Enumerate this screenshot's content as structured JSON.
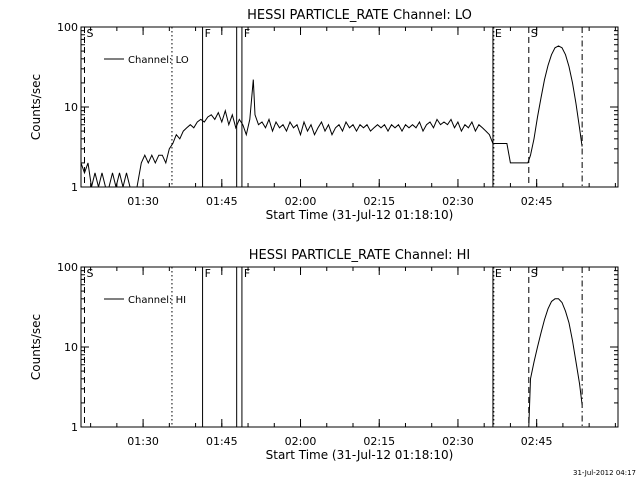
{
  "footer_date": "31-Jul-2012 04:17",
  "colors": {
    "line": "#000000",
    "background": "#ffffff"
  },
  "chart_data": [
    {
      "type": "line",
      "title": "HESSI PARTICLE_RATE Channel: LO",
      "xlabel": "Start Time (31-Jul-12 01:18:10)",
      "ylabel": "Counts/sec",
      "yscale": "log",
      "ylim": [
        1,
        100
      ],
      "xlim": [
        "01:18:10",
        "03:00:30"
      ],
      "x_ticks": [
        "01:30",
        "01:45",
        "02:00",
        "02:15",
        "02:30",
        "02:45"
      ],
      "y_ticks": [
        "1",
        "10",
        "100"
      ],
      "legend": {
        "entries": [
          "Channel: LO"
        ],
        "position": "top-left"
      },
      "event_markers": [
        {
          "label": "S",
          "time": "01:18:50",
          "style": "dashed"
        },
        {
          "label": "",
          "time": "01:35:30",
          "style": "dotted"
        },
        {
          "label": "F",
          "time": "01:41:20",
          "style": "solid"
        },
        {
          "label": "",
          "time": "01:47:50",
          "style": "solid"
        },
        {
          "label": "F",
          "time": "01:48:50",
          "style": "solid"
        },
        {
          "label": "E",
          "time": "02:36:40",
          "style": "solid"
        },
        {
          "label": "",
          "time": "02:36:50",
          "style": "dotted"
        },
        {
          "label": "S",
          "time": "02:43:30",
          "style": "dashed"
        },
        {
          "label": "",
          "time": "02:53:40",
          "style": "dashdot"
        }
      ],
      "series": [
        {
          "name": "Channel: LO",
          "points": [
            [
              "01:18:10",
              2.0
            ],
            [
              "01:18:50",
              1.5
            ],
            [
              "01:19:30",
              2.0
            ],
            [
              "01:20:10",
              1.0
            ],
            [
              "01:20:50",
              1.5
            ],
            [
              "01:21:30",
              1.0
            ],
            [
              "01:22:10",
              1.5
            ],
            [
              "01:22:50",
              1.0
            ],
            [
              "01:23:30",
              1.0
            ],
            [
              "01:24:10",
              1.5
            ],
            [
              "01:24:50",
              1.0
            ],
            [
              "01:25:30",
              1.5
            ],
            [
              "01:26:10",
              1.0
            ],
            [
              "01:26:50",
              1.5
            ],
            [
              "01:27:30",
              1.0
            ],
            [
              "01:28:10",
              1.0
            ],
            [
              "01:28:50",
              1.0
            ],
            [
              "01:29:40",
              2.0
            ],
            [
              "01:30:20",
              2.5
            ],
            [
              "01:31:00",
              2.0
            ],
            [
              "01:31:40",
              2.5
            ],
            [
              "01:32:20",
              2.0
            ],
            [
              "01:33:00",
              2.5
            ],
            [
              "01:33:40",
              2.5
            ],
            [
              "01:34:20",
              2.0
            ],
            [
              "01:35:00",
              3.0
            ],
            [
              "01:35:40",
              3.5
            ],
            [
              "01:36:20",
              4.5
            ],
            [
              "01:37:00",
              4.0
            ],
            [
              "01:37:40",
              5.0
            ],
            [
              "01:38:20",
              5.5
            ],
            [
              "01:39:00",
              6.0
            ],
            [
              "01:39:40",
              5.5
            ],
            [
              "01:40:20",
              6.5
            ],
            [
              "01:41:00",
              7.0
            ],
            [
              "01:41:40",
              6.5
            ],
            [
              "01:42:20",
              7.5
            ],
            [
              "01:43:00",
              8.0
            ],
            [
              "01:43:40",
              7.0
            ],
            [
              "01:44:20",
              8.5
            ],
            [
              "01:45:00",
              6.5
            ],
            [
              "01:45:40",
              9.0
            ],
            [
              "01:46:20",
              6.0
            ],
            [
              "01:47:00",
              8.0
            ],
            [
              "01:47:40",
              5.5
            ],
            [
              "01:48:20",
              7.0
            ],
            [
              "01:49:00",
              6.0
            ],
            [
              "01:49:40",
              4.5
            ],
            [
              "01:50:20",
              7.0
            ],
            [
              "01:51:00",
              22.0
            ],
            [
              "01:51:20",
              8.0
            ],
            [
              "01:52:00",
              6.0
            ],
            [
              "01:52:40",
              6.5
            ],
            [
              "01:53:20",
              5.5
            ],
            [
              "01:54:00",
              7.0
            ],
            [
              "01:54:40",
              5.0
            ],
            [
              "01:55:20",
              6.5
            ],
            [
              "01:56:00",
              5.5
            ],
            [
              "01:56:40",
              6.0
            ],
            [
              "01:57:20",
              5.0
            ],
            [
              "01:58:00",
              6.5
            ],
            [
              "01:58:40",
              5.5
            ],
            [
              "01:59:20",
              6.0
            ],
            [
              "02:00:00",
              4.5
            ],
            [
              "02:00:40",
              6.5
            ],
            [
              "02:01:20",
              5.0
            ],
            [
              "02:02:00",
              6.0
            ],
            [
              "02:02:40",
              4.5
            ],
            [
              "02:03:20",
              5.5
            ],
            [
              "02:04:00",
              6.5
            ],
            [
              "02:04:40",
              5.0
            ],
            [
              "02:05:20",
              6.0
            ],
            [
              "02:06:00",
              4.5
            ],
            [
              "02:06:40",
              5.5
            ],
            [
              "02:07:20",
              6.0
            ],
            [
              "02:08:00",
              5.0
            ],
            [
              "02:08:40",
              6.5
            ],
            [
              "02:09:20",
              5.5
            ],
            [
              "02:10:00",
              6.0
            ],
            [
              "02:10:40",
              5.0
            ],
            [
              "02:11:20",
              6.0
            ],
            [
              "02:12:00",
              5.5
            ],
            [
              "02:12:40",
              6.0
            ],
            [
              "02:13:20",
              5.0
            ],
            [
              "02:14:00",
              5.5
            ],
            [
              "02:14:40",
              6.0
            ],
            [
              "02:15:20",
              5.5
            ],
            [
              "02:16:00",
              6.0
            ],
            [
              "02:16:40",
              5.0
            ],
            [
              "02:17:20",
              6.0
            ],
            [
              "02:18:00",
              5.5
            ],
            [
              "02:18:40",
              6.0
            ],
            [
              "02:19:20",
              5.0
            ],
            [
              "02:20:00",
              6.0
            ],
            [
              "02:20:40",
              5.5
            ],
            [
              "02:21:20",
              6.0
            ],
            [
              "02:22:00",
              5.5
            ],
            [
              "02:22:40",
              6.5
            ],
            [
              "02:23:20",
              5.0
            ],
            [
              "02:24:00",
              6.0
            ],
            [
              "02:24:40",
              6.5
            ],
            [
              "02:25:20",
              5.5
            ],
            [
              "02:26:00",
              7.0
            ],
            [
              "02:26:40",
              6.0
            ],
            [
              "02:27:20",
              6.5
            ],
            [
              "02:28:00",
              6.0
            ],
            [
              "02:28:40",
              7.0
            ],
            [
              "02:29:20",
              5.5
            ],
            [
              "02:30:00",
              6.5
            ],
            [
              "02:30:40",
              5.0
            ],
            [
              "02:31:20",
              6.0
            ],
            [
              "02:32:00",
              5.5
            ],
            [
              "02:32:40",
              6.5
            ],
            [
              "02:33:20",
              5.0
            ],
            [
              "02:34:00",
              6.0
            ],
            [
              "02:34:40",
              5.5
            ],
            [
              "02:35:20",
              5.0
            ],
            [
              "02:36:00",
              4.5
            ],
            [
              "02:36:40",
              3.5
            ],
            [
              "02:37:20",
              3.5
            ],
            [
              "02:38:00",
              3.5
            ],
            [
              "02:38:40",
              3.5
            ],
            [
              "02:39:20",
              3.5
            ],
            [
              "02:40:00",
              2.0
            ],
            [
              "02:40:40",
              2.0
            ],
            [
              "02:41:20",
              2.0
            ],
            [
              "02:42:00",
              2.0
            ],
            [
              "02:42:40",
              2.0
            ],
            [
              "02:43:20",
              2.0
            ],
            [
              "02:43:50",
              2.5
            ],
            [
              "02:44:30",
              4.0
            ],
            [
              "02:45:10",
              7.5
            ],
            [
              "02:45:50",
              13.0
            ],
            [
              "02:46:30",
              22.0
            ],
            [
              "02:47:10",
              33.0
            ],
            [
              "02:47:50",
              45.0
            ],
            [
              "02:48:30",
              55.0
            ],
            [
              "02:49:10",
              58.0
            ],
            [
              "02:49:50",
              55.0
            ],
            [
              "02:50:30",
              45.0
            ],
            [
              "02:51:10",
              32.0
            ],
            [
              "02:51:50",
              20.0
            ],
            [
              "02:52:30",
              11.0
            ],
            [
              "02:53:10",
              5.5
            ],
            [
              "02:53:40",
              3.2
            ]
          ]
        }
      ]
    },
    {
      "type": "line",
      "title": "HESSI PARTICLE_RATE Channel: HI",
      "xlabel": "Start Time (31-Jul-12 01:18:10)",
      "ylabel": "Counts/sec",
      "yscale": "log",
      "ylim": [
        1,
        100
      ],
      "xlim": [
        "01:18:10",
        "03:00:30"
      ],
      "x_ticks": [
        "01:30",
        "01:45",
        "02:00",
        "02:15",
        "02:30",
        "02:45"
      ],
      "y_ticks": [
        "1",
        "10",
        "100"
      ],
      "legend": {
        "entries": [
          "Channel: HI"
        ],
        "position": "top-left"
      },
      "event_markers": [
        {
          "label": "S",
          "time": "01:18:50",
          "style": "dashed"
        },
        {
          "label": "",
          "time": "01:35:30",
          "style": "dotted"
        },
        {
          "label": "F",
          "time": "01:41:20",
          "style": "solid"
        },
        {
          "label": "",
          "time": "01:47:50",
          "style": "solid"
        },
        {
          "label": "F",
          "time": "01:48:50",
          "style": "solid"
        },
        {
          "label": "E",
          "time": "02:36:40",
          "style": "solid"
        },
        {
          "label": "",
          "time": "02:36:50",
          "style": "dotted"
        },
        {
          "label": "S",
          "time": "02:43:30",
          "style": "dashed"
        },
        {
          "label": "",
          "time": "02:53:40",
          "style": "dashdot"
        }
      ],
      "series": [
        {
          "name": "Channel: HI",
          "points": [
            [
              "02:43:30",
              1.0
            ],
            [
              "02:43:50",
              4.0
            ],
            [
              "02:44:30",
              6.5
            ],
            [
              "02:45:10",
              10.0
            ],
            [
              "02:45:50",
              15.0
            ],
            [
              "02:46:30",
              22.0
            ],
            [
              "02:47:10",
              30.0
            ],
            [
              "02:47:50",
              37.0
            ],
            [
              "02:48:30",
              40.0
            ],
            [
              "02:49:10",
              40.0
            ],
            [
              "02:49:50",
              36.0
            ],
            [
              "02:50:30",
              28.0
            ],
            [
              "02:51:10",
              20.0
            ],
            [
              "02:51:50",
              12.0
            ],
            [
              "02:52:30",
              6.5
            ],
            [
              "02:53:10",
              3.5
            ],
            [
              "02:53:40",
              1.9
            ]
          ]
        }
      ]
    }
  ]
}
